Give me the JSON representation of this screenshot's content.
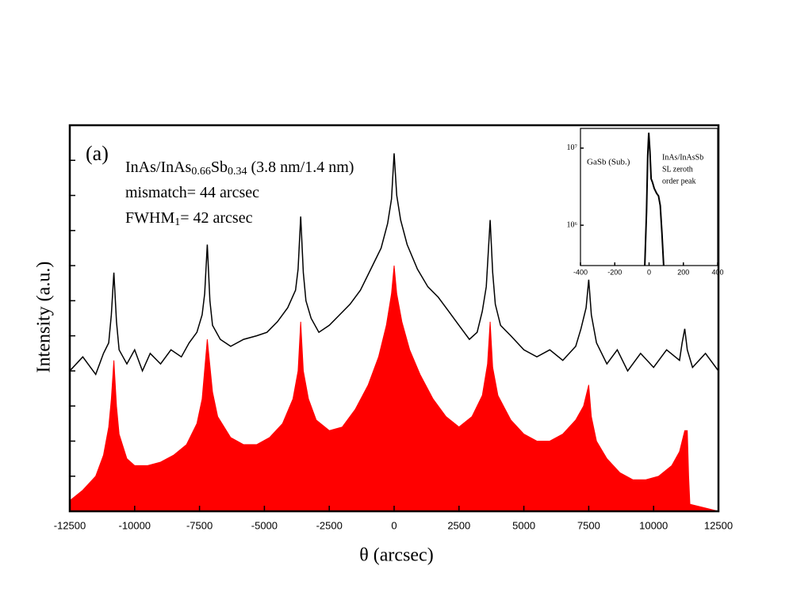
{
  "chart_data": [
    {
      "type": "line",
      "xlabel": "θ (arcsec)",
      "ylabel": "Intensity (a.u.)",
      "xlim": [
        -12500,
        12500
      ],
      "xticks": [
        -12500,
        -10000,
        -7500,
        -5000,
        -2500,
        0,
        2500,
        5000,
        7500,
        10000,
        12500
      ],
      "ylim": [
        0,
        11
      ],
      "yticks": [
        1,
        2,
        3,
        4,
        5,
        6,
        7,
        8,
        9,
        10
      ],
      "panel_label": "(a)",
      "annotation_lines": [
        [
          "InAs/InAs",
          "0.66",
          "Sb",
          "0.34",
          " (3.8 nm/1.4 nm)"
        ],
        [
          "mismatch= 44 arcsec"
        ],
        [
          "FWHM",
          "1",
          "= 42 arcsec"
        ]
      ],
      "series": [
        {
          "color": "#000000",
          "style": "line",
          "x": [
            -12500,
            -12000,
            -11500,
            -11200,
            -11000,
            -10900,
            -10800,
            -10700,
            -10600,
            -10300,
            -10000,
            -9700,
            -9400,
            -9000,
            -8600,
            -8200,
            -7900,
            -7600,
            -7400,
            -7300,
            -7200,
            -7100,
            -7000,
            -6700,
            -6300,
            -5800,
            -5300,
            -4900,
            -4500,
            -4100,
            -3800,
            -3700,
            -3600,
            -3500,
            -3400,
            -3200,
            -2900,
            -2500,
            -2100,
            -1700,
            -1300,
            -900,
            -500,
            -250,
            -100,
            0,
            100,
            250,
            500,
            900,
            1300,
            1700,
            2100,
            2500,
            2900,
            3200,
            3400,
            3550,
            3700,
            3800,
            3900,
            4100,
            4500,
            5000,
            5500,
            6000,
            6500,
            7000,
            7200,
            7400,
            7500,
            7600,
            7800,
            8200,
            8600,
            9000,
            9500,
            10000,
            10500,
            11000,
            11100,
            11200,
            11300,
            11500,
            12000,
            12500
          ],
          "values": [
            4.0,
            4.4,
            3.9,
            4.5,
            4.8,
            5.6,
            6.8,
            5.4,
            4.6,
            4.2,
            4.6,
            4.0,
            4.5,
            4.2,
            4.6,
            4.4,
            4.8,
            5.1,
            5.6,
            6.2,
            7.6,
            6.0,
            5.3,
            4.9,
            4.7,
            4.9,
            5.0,
            5.1,
            5.4,
            5.8,
            6.3,
            6.9,
            8.4,
            6.8,
            6.0,
            5.5,
            5.1,
            5.3,
            5.6,
            5.9,
            6.3,
            6.9,
            7.5,
            8.2,
            8.9,
            10.2,
            9.0,
            8.3,
            7.6,
            6.9,
            6.4,
            6.1,
            5.7,
            5.3,
            4.9,
            5.1,
            5.7,
            6.4,
            8.3,
            6.8,
            5.9,
            5.3,
            5.0,
            4.6,
            4.4,
            4.6,
            4.3,
            4.7,
            5.2,
            5.8,
            6.6,
            5.6,
            4.8,
            4.2,
            4.6,
            4.0,
            4.5,
            4.1,
            4.6,
            4.3,
            4.8,
            5.2,
            4.6,
            4.1,
            4.5,
            4.0
          ]
        },
        {
          "color": "#ff0000",
          "style": "area",
          "x": [
            -12500,
            -12000,
            -11500,
            -11200,
            -11000,
            -10900,
            -10800,
            -10700,
            -10600,
            -10300,
            -10000,
            -9500,
            -9000,
            -8500,
            -8000,
            -7600,
            -7400,
            -7200,
            -7000,
            -6800,
            -6300,
            -5800,
            -5300,
            -4800,
            -4300,
            -3900,
            -3700,
            -3600,
            -3500,
            -3300,
            -3000,
            -2500,
            -2000,
            -1500,
            -1000,
            -600,
            -300,
            -100,
            0,
            100,
            300,
            600,
            1000,
            1500,
            2000,
            2500,
            3000,
            3400,
            3600,
            3700,
            3800,
            4000,
            4500,
            5000,
            5500,
            6000,
            6500,
            7000,
            7300,
            7500,
            7600,
            7800,
            8200,
            8700,
            9200,
            9700,
            10200,
            10700,
            11000,
            11200,
            11300,
            11350,
            11400,
            12500
          ],
          "values": [
            0.3,
            0.6,
            1.0,
            1.6,
            2.4,
            3.2,
            4.3,
            3.0,
            2.2,
            1.5,
            1.3,
            1.3,
            1.4,
            1.6,
            1.9,
            2.5,
            3.2,
            4.9,
            3.4,
            2.7,
            2.1,
            1.9,
            1.9,
            2.1,
            2.5,
            3.2,
            4.0,
            5.4,
            4.0,
            3.2,
            2.6,
            2.3,
            2.4,
            2.9,
            3.6,
            4.4,
            5.3,
            6.2,
            7.0,
            6.2,
            5.4,
            4.6,
            3.9,
            3.2,
            2.7,
            2.4,
            2.7,
            3.3,
            4.2,
            5.4,
            4.1,
            3.3,
            2.6,
            2.2,
            2.0,
            2.0,
            2.2,
            2.6,
            3.0,
            3.6,
            2.7,
            2.0,
            1.5,
            1.1,
            0.9,
            0.9,
            1.0,
            1.3,
            1.7,
            2.3,
            2.3,
            1.0,
            0.2,
            0.0
          ]
        }
      ]
    },
    {
      "type": "line",
      "log_y": true,
      "xlim": [
        -400,
        400
      ],
      "xticks": [
        -400,
        -200,
        0,
        200,
        400
      ],
      "ylim": [
        300000,
        18000000
      ],
      "yticks": [
        {
          "value": 1000000,
          "label": "10⁶"
        },
        {
          "value": 10000000,
          "label": "10⁷"
        }
      ],
      "annotations": [
        "GaSb (Sub.)",
        "InAs/InAsSb",
        "SL zeroth",
        "order peak"
      ],
      "series": [
        {
          "color": "#000000",
          "style": "line",
          "x": [
            -25,
            -15,
            -8,
            -2,
            5,
            12,
            20,
            30,
            44,
            55,
            65,
            75,
            85
          ],
          "values": [
            300000,
            1500000,
            8000000,
            15800000,
            9000000,
            4000000,
            3600000,
            3000000,
            2600000,
            2400000,
            1800000,
            800000,
            300000
          ]
        }
      ]
    }
  ]
}
